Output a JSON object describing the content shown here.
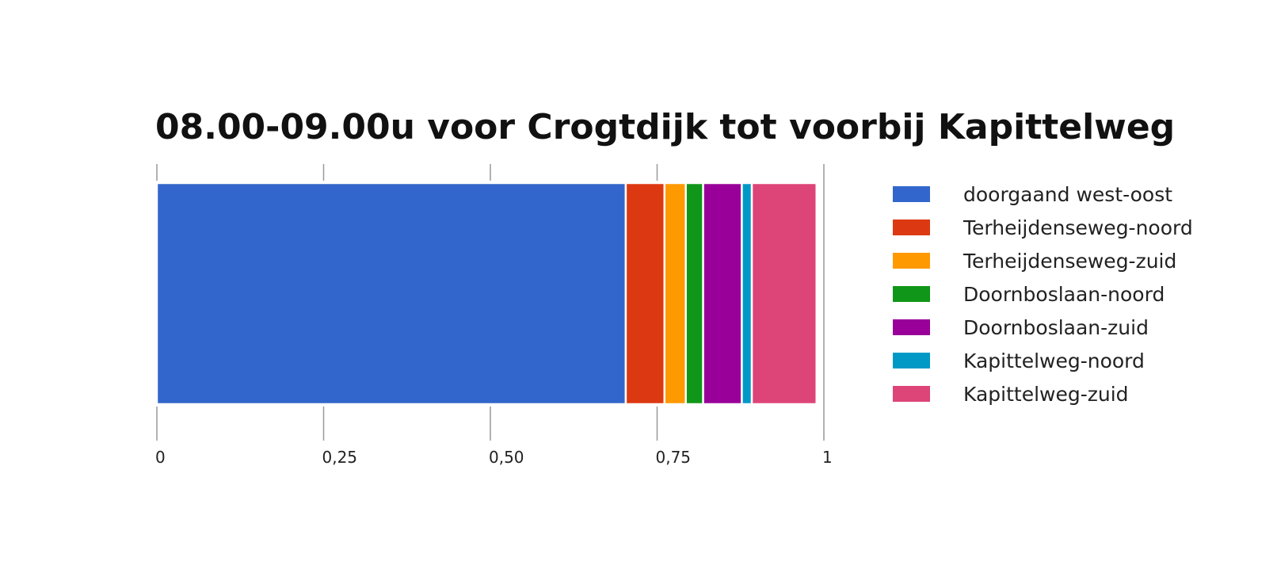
{
  "chart_data": {
    "type": "bar",
    "orientation": "horizontal",
    "stacked": true,
    "title": "08.00-09.00u voor Crogtdijk tot voorbij Kapittelweg",
    "xlabel": "",
    "ylabel": "",
    "xlim": [
      0,
      1
    ],
    "x_ticks": [
      0,
      0.25,
      0.5,
      0.75,
      1
    ],
    "x_tick_labels": [
      "0",
      "0,25",
      "0,50",
      "0,75",
      "1"
    ],
    "grid": false,
    "legend_position": "right",
    "series": [
      {
        "name": "doorgaand west-oost",
        "value": 0.703,
        "color": "#3366cc"
      },
      {
        "name": "Terheijdenseweg-noord",
        "value": 0.058,
        "color": "#dc3912"
      },
      {
        "name": "Terheijdenseweg-zuid",
        "value": 0.032,
        "color": "#ff9900"
      },
      {
        "name": "Doornboslaan-noord",
        "value": 0.026,
        "color": "#109618"
      },
      {
        "name": "Doornboslaan-zuid",
        "value": 0.058,
        "color": "#990099"
      },
      {
        "name": "Kapittelweg-noord",
        "value": 0.015,
        "color": "#0099c6"
      },
      {
        "name": "Kapittelweg-zuid",
        "value": 0.097,
        "color": "#dd4477"
      }
    ]
  }
}
